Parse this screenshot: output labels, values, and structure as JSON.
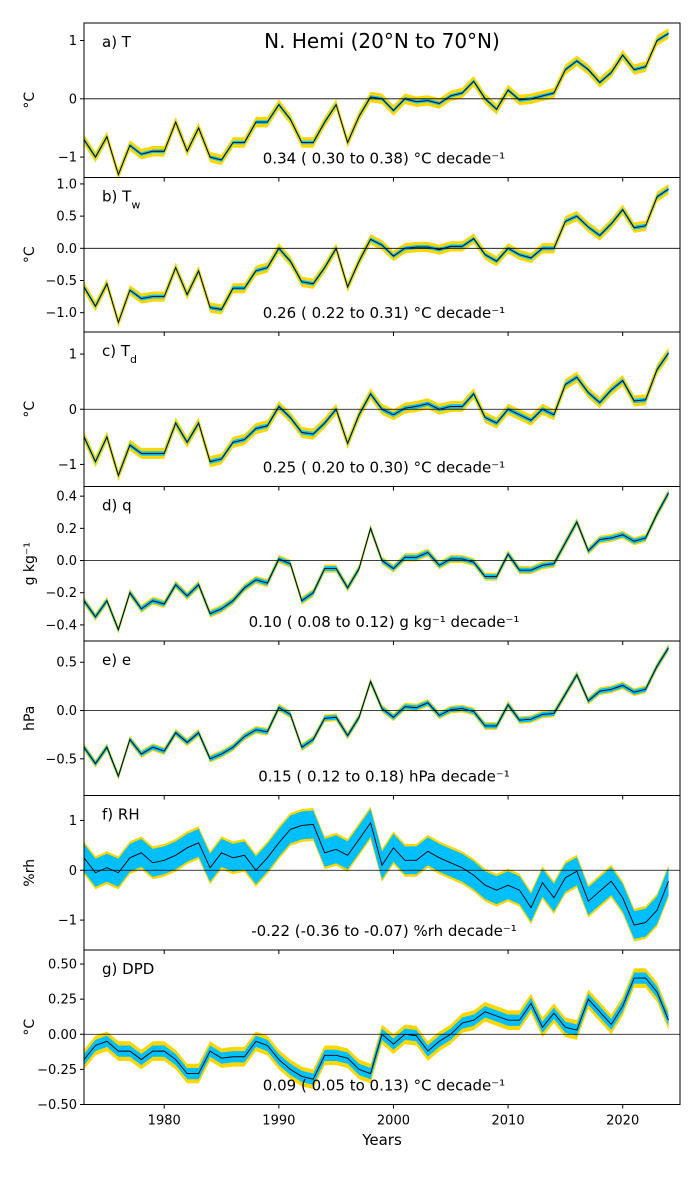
{
  "title": "N. Hemi (20°N to 70°N)",
  "xlabel": "Years",
  "colors": {
    "uncertainty_outer": "#FFD700",
    "uncertainty_inner": "#00BFFF",
    "anomaly_line": "#000000",
    "panel_line": "#00BFFF"
  },
  "chart_data": {
    "type": "line",
    "x_range": [
      1973,
      2025
    ],
    "x_ticks": [
      1980,
      1990,
      2000,
      2010,
      2020
    ],
    "years": [
      1973,
      1974,
      1975,
      1976,
      1977,
      1978,
      1979,
      1980,
      1981,
      1982,
      1983,
      1984,
      1985,
      1986,
      1987,
      1988,
      1989,
      1990,
      1991,
      1992,
      1993,
      1994,
      1995,
      1996,
      1997,
      1998,
      1999,
      2000,
      2001,
      2002,
      2003,
      2004,
      2005,
      2006,
      2007,
      2008,
      2009,
      2010,
      2011,
      2012,
      2013,
      2014,
      2015,
      2016,
      2017,
      2018,
      2019,
      2020,
      2021,
      2022,
      2023,
      2024
    ],
    "panels": [
      {
        "label": "a) T",
        "ylabel": "°C",
        "ylim": [
          -1.35,
          1.3
        ],
        "yticks": [
          -1,
          0,
          1
        ],
        "ytick_labels": [
          "−1",
          "0",
          "1"
        ],
        "trend": "0.34 ( 0.30 to  0.38) °C decade⁻¹",
        "inner_halfwidth": 0.03,
        "outer_halfwidth": 0.09,
        "values": [
          -0.7,
          -1.0,
          -0.65,
          -1.3,
          -0.8,
          -0.95,
          -0.9,
          -0.9,
          -0.4,
          -0.9,
          -0.5,
          -1.0,
          -1.05,
          -0.75,
          -0.75,
          -0.4,
          -0.4,
          -0.1,
          -0.35,
          -0.75,
          -0.75,
          -0.4,
          -0.1,
          -0.75,
          -0.3,
          0.03,
          0.0,
          -0.2,
          0.0,
          -0.05,
          -0.03,
          -0.08,
          0.05,
          0.1,
          0.3,
          0.0,
          -0.18,
          0.15,
          -0.02,
          0.0,
          0.05,
          0.1,
          0.5,
          0.65,
          0.5,
          0.28,
          0.45,
          0.75,
          0.5,
          0.55,
          1.0,
          1.12
        ]
      },
      {
        "label": "b) T",
        "label_sub": "w",
        "ylabel": "°C",
        "ylim": [
          -1.3,
          1.1
        ],
        "yticks": [
          -1,
          -0.5,
          0,
          0.5,
          1
        ],
        "ytick_labels": [
          "−1.0",
          "−0.5",
          "0.0",
          "0.5",
          "1.0"
        ],
        "trend": "0.26 ( 0.22 to  0.31) °C decade⁻¹",
        "inner_halfwidth": 0.03,
        "outer_halfwidth": 0.08,
        "values": [
          -0.6,
          -0.9,
          -0.55,
          -1.15,
          -0.65,
          -0.78,
          -0.75,
          -0.75,
          -0.3,
          -0.72,
          -0.35,
          -0.92,
          -0.95,
          -0.62,
          -0.62,
          -0.35,
          -0.3,
          0.0,
          -0.2,
          -0.52,
          -0.55,
          -0.3,
          0.0,
          -0.6,
          -0.2,
          0.14,
          0.05,
          -0.12,
          0.0,
          0.02,
          0.02,
          -0.02,
          0.03,
          0.03,
          0.15,
          -0.1,
          -0.2,
          0.0,
          -0.1,
          -0.15,
          0.0,
          0.0,
          0.42,
          0.5,
          0.33,
          0.2,
          0.38,
          0.6,
          0.32,
          0.35,
          0.8,
          0.92
        ]
      },
      {
        "label": "c) T",
        "label_sub": "d",
        "ylabel": "°C",
        "ylim": [
          -1.4,
          1.4
        ],
        "yticks": [
          -1,
          0,
          1
        ],
        "ytick_labels": [
          "−1",
          "0",
          "1"
        ],
        "trend": "0.25 ( 0.20 to  0.30) °C decade⁻¹",
        "inner_halfwidth": 0.04,
        "outer_halfwidth": 0.1,
        "values": [
          -0.5,
          -0.95,
          -0.5,
          -1.2,
          -0.65,
          -0.8,
          -0.8,
          -0.8,
          -0.25,
          -0.6,
          -0.25,
          -0.95,
          -0.9,
          -0.6,
          -0.55,
          -0.35,
          -0.3,
          0.05,
          -0.15,
          -0.42,
          -0.45,
          -0.25,
          0.0,
          -0.62,
          -0.1,
          0.28,
          0.0,
          -0.1,
          0.02,
          0.05,
          0.1,
          0.0,
          0.05,
          0.05,
          0.28,
          -0.15,
          -0.25,
          0.0,
          -0.1,
          -0.2,
          0.0,
          -0.1,
          0.45,
          0.58,
          0.3,
          0.12,
          0.35,
          0.52,
          0.15,
          0.17,
          0.72,
          1.02
        ]
      },
      {
        "label": "d) q",
        "ylabel": "g kg⁻¹",
        "ylim": [
          -0.5,
          0.46
        ],
        "yticks": [
          -0.4,
          -0.2,
          0,
          0.2,
          0.4
        ],
        "ytick_labels": [
          "−0.4",
          "−0.2",
          "0.0",
          "0.2",
          "0.4"
        ],
        "trend": "0.10 ( 0.08 to  0.12) g kg⁻¹ decade⁻¹",
        "inner_halfwidth": 0.015,
        "outer_halfwidth": 0.025,
        "values": [
          -0.25,
          -0.35,
          -0.25,
          -0.43,
          -0.2,
          -0.3,
          -0.25,
          -0.27,
          -0.15,
          -0.22,
          -0.15,
          -0.33,
          -0.3,
          -0.25,
          -0.17,
          -0.12,
          -0.14,
          0.01,
          -0.02,
          -0.25,
          -0.2,
          -0.05,
          -0.05,
          -0.17,
          -0.05,
          0.2,
          0.0,
          -0.05,
          0.02,
          0.02,
          0.05,
          -0.03,
          0.01,
          0.01,
          -0.01,
          -0.1,
          -0.1,
          0.04,
          -0.06,
          -0.06,
          -0.03,
          -0.02,
          0.11,
          0.24,
          0.06,
          0.13,
          0.14,
          0.16,
          0.12,
          0.14,
          0.29,
          0.42
        ]
      },
      {
        "label": "e) e",
        "ylabel": "hPa",
        "ylim": [
          -0.88,
          0.72
        ],
        "yticks": [
          -0.5,
          0,
          0.5
        ],
        "ytick_labels": [
          "−0.5",
          "0.0",
          "0.5"
        ],
        "trend": "0.15 ( 0.12 to  0.18) hPa decade⁻¹",
        "inner_halfwidth": 0.025,
        "outer_halfwidth": 0.04,
        "values": [
          -0.38,
          -0.55,
          -0.38,
          -0.68,
          -0.3,
          -0.45,
          -0.38,
          -0.42,
          -0.23,
          -0.33,
          -0.23,
          -0.5,
          -0.45,
          -0.38,
          -0.27,
          -0.2,
          -0.22,
          0.03,
          -0.04,
          -0.38,
          -0.3,
          -0.08,
          -0.07,
          -0.26,
          -0.07,
          0.3,
          0.02,
          -0.07,
          0.04,
          0.03,
          0.08,
          -0.05,
          0.01,
          0.02,
          -0.01,
          -0.16,
          -0.16,
          0.06,
          -0.1,
          -0.09,
          -0.04,
          -0.03,
          0.17,
          0.37,
          0.1,
          0.2,
          0.22,
          0.26,
          0.19,
          0.22,
          0.46,
          0.65
        ]
      },
      {
        "label": "f) RH",
        "ylabel": "%rh",
        "ylim": [
          -1.6,
          1.5
        ],
        "yticks": [
          -1,
          0,
          1
        ],
        "ytick_labels": [
          "−1",
          "0",
          "1"
        ],
        "trend": "-0.22 (-0.36 to -0.07) %rh decade⁻¹",
        "inner_halfwidth": 0.28,
        "outer_halfwidth": 0.33,
        "values": [
          0.25,
          -0.05,
          0.05,
          -0.05,
          0.25,
          0.35,
          0.15,
          0.2,
          0.3,
          0.45,
          0.55,
          0.05,
          0.35,
          0.25,
          0.3,
          0.0,
          0.25,
          0.55,
          0.82,
          0.9,
          0.92,
          0.35,
          0.42,
          0.3,
          0.62,
          0.95,
          0.1,
          0.45,
          0.2,
          0.2,
          0.38,
          0.25,
          0.15,
          0.05,
          -0.1,
          -0.3,
          -0.4,
          -0.3,
          -0.4,
          -0.75,
          -0.25,
          -0.55,
          -0.15,
          -0.02,
          -0.62,
          -0.42,
          -0.22,
          -0.55,
          -1.1,
          -1.05,
          -0.8,
          -0.22
        ]
      },
      {
        "label": "g) DPD",
        "ylabel": "°C",
        "ylim": [
          -0.5,
          0.6
        ],
        "yticks": [
          -0.5,
          -0.25,
          0,
          0.25,
          0.5
        ],
        "ytick_labels": [
          "−0.50",
          "−0.25",
          "0.00",
          "0.25",
          "0.50"
        ],
        "trend": "0.09 ( 0.05 to  0.13) °C decade⁻¹",
        "inner_halfwidth": 0.04,
        "outer_halfwidth": 0.07,
        "values": [
          -0.18,
          -0.08,
          -0.05,
          -0.12,
          -0.12,
          -0.18,
          -0.12,
          -0.12,
          -0.18,
          -0.28,
          -0.28,
          -0.12,
          -0.17,
          -0.16,
          -0.16,
          -0.05,
          -0.08,
          -0.18,
          -0.25,
          -0.3,
          -0.32,
          -0.15,
          -0.15,
          -0.17,
          -0.25,
          -0.28,
          0.0,
          -0.07,
          0.0,
          -0.01,
          -0.12,
          -0.05,
          0.0,
          0.08,
          0.1,
          0.16,
          0.13,
          0.1,
          0.1,
          0.22,
          0.05,
          0.15,
          0.05,
          0.03,
          0.25,
          0.16,
          0.07,
          0.2,
          0.4,
          0.4,
          0.3,
          0.1
        ]
      }
    ]
  }
}
